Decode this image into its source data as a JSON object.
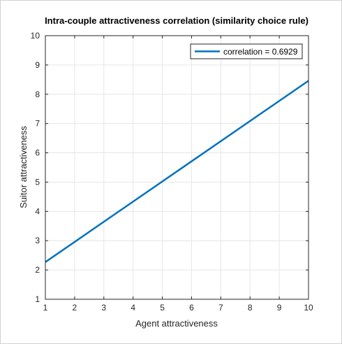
{
  "chart_data": {
    "type": "line",
    "title": "Intra-couple attractiveness correlation (similarity choice rule)",
    "xlabel": "Agent attractiveness",
    "ylabel": "Suitor attractiveness",
    "xlim": [
      1,
      10
    ],
    "ylim": [
      1,
      10
    ],
    "xticks": [
      1,
      2,
      3,
      4,
      5,
      6,
      7,
      8,
      9,
      10
    ],
    "yticks": [
      1,
      2,
      3,
      4,
      5,
      6,
      7,
      8,
      9,
      10
    ],
    "grid": true,
    "legend_position": "top-right",
    "series": [
      {
        "name": "correlation = 0.6929",
        "color": "#0072bd",
        "x": [
          1,
          10
        ],
        "y": [
          2.27,
          8.46
        ]
      }
    ]
  },
  "colors": {
    "series": "#0072bd",
    "grid": "#e6e6e6",
    "axis": "#262626"
  }
}
